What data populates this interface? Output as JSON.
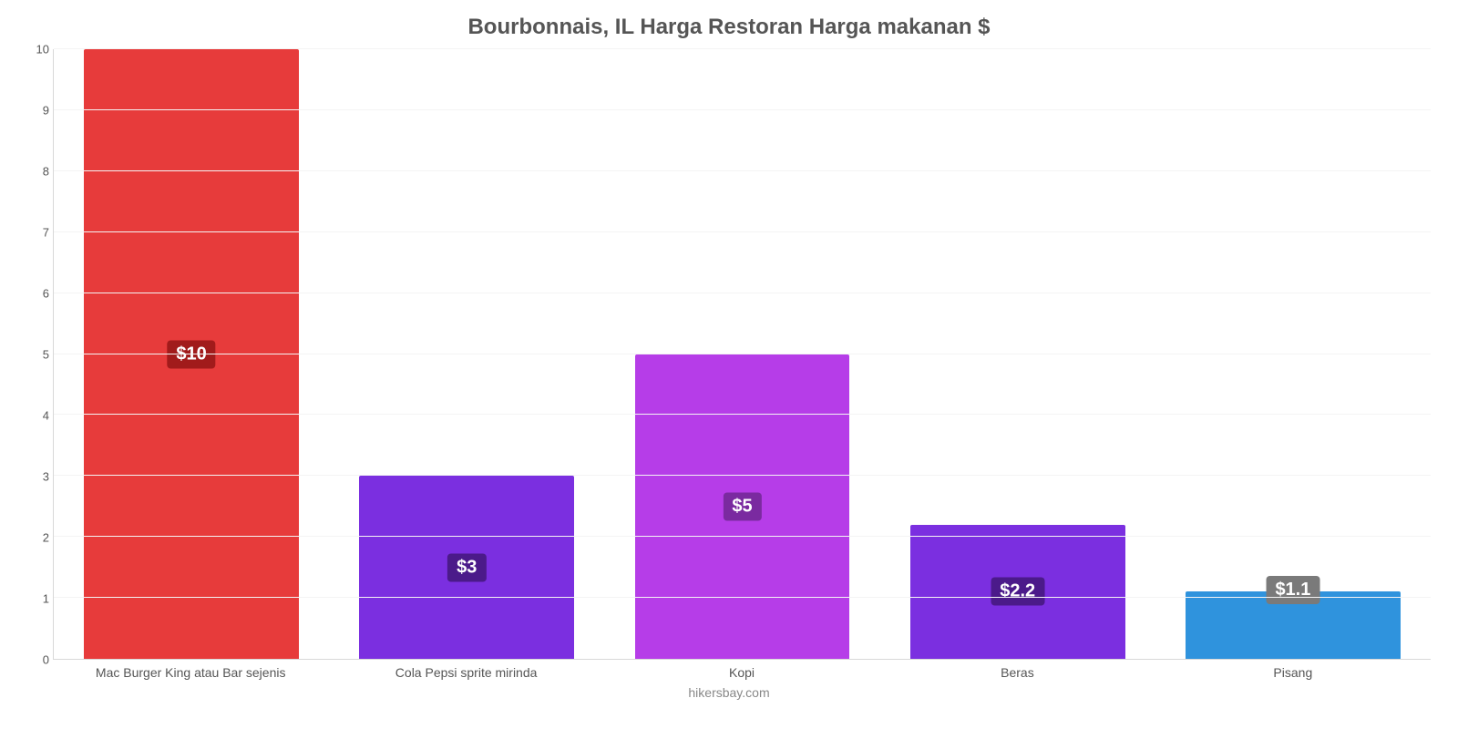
{
  "chart": {
    "type": "bar",
    "title": "Bourbonnais, IL Harga Restoran Harga makanan $",
    "title_fontsize": 24,
    "title_color": "#555555",
    "credit": "hikersbay.com",
    "credit_fontsize": 14,
    "credit_color": "#888888",
    "background_color": "#ffffff",
    "grid_color": "#f4f4f4",
    "axis_line_color": "#d8d8d8",
    "ylim": [
      0,
      10
    ],
    "yticks": [
      0,
      1,
      2,
      3,
      4,
      5,
      6,
      7,
      8,
      9,
      10
    ],
    "ytick_fontsize": 13,
    "ytick_color": "#555555",
    "xlabel_fontsize": 14,
    "xlabel_color": "#555555",
    "bar_width_pct": 78,
    "value_label_fontsize": 20,
    "value_label_text_color": "#ffffff",
    "value_label_radius": 4,
    "categories": [
      "Mac Burger King atau Bar sejenis",
      "Cola Pepsi sprite mirinda",
      "Kopi",
      "Beras",
      "Pisang"
    ],
    "values": [
      10,
      3,
      5,
      2.2,
      1.1
    ],
    "value_labels": [
      "$10",
      "$3",
      "$5",
      "$2.2",
      "$1.1"
    ],
    "bar_colors": [
      "#e73b3b",
      "#7b2fe0",
      "#b63de8",
      "#7b2fe0",
      "#2f93dd"
    ],
    "label_bg_colors": [
      "#a11b1b",
      "#4b1a8a",
      "#7a2aa0",
      "#4b1a8a",
      "#7a7a7a"
    ],
    "label_placement": [
      "onbar",
      "onbar",
      "onbar",
      "onbar",
      "above"
    ]
  }
}
